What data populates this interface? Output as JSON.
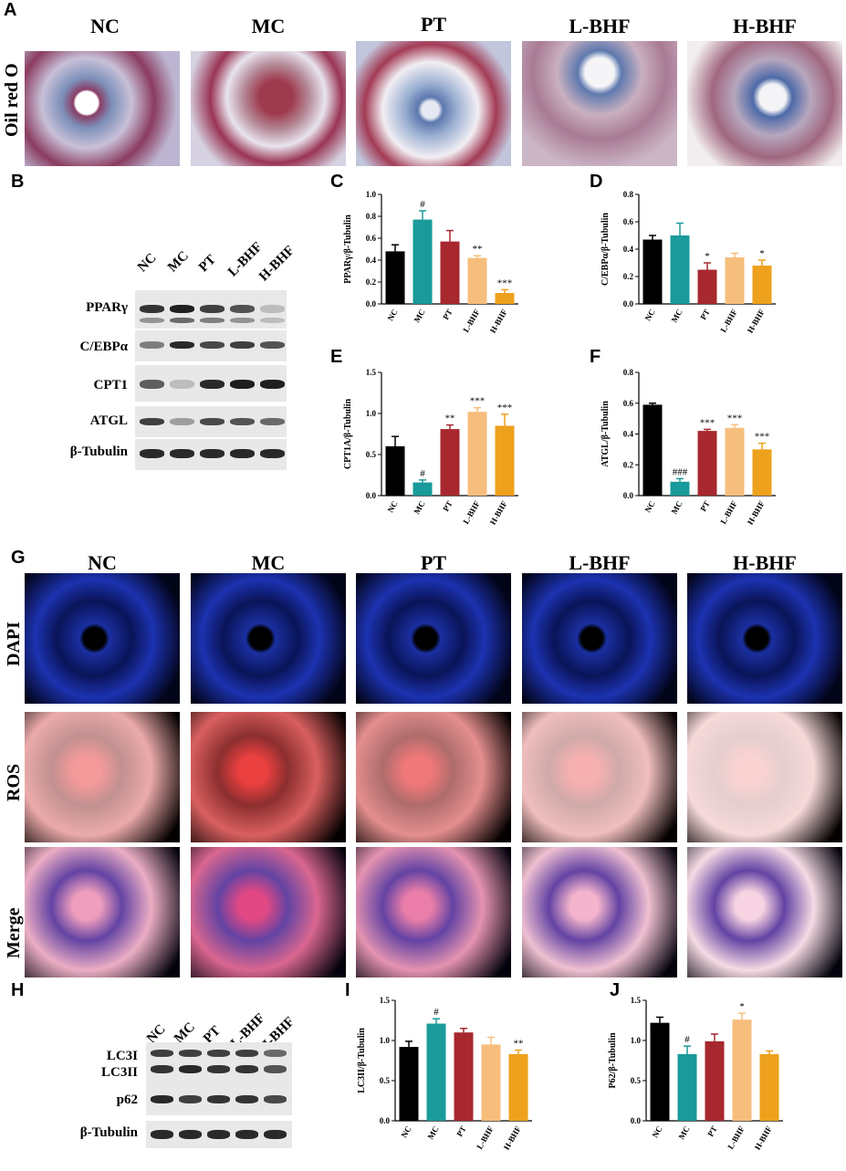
{
  "panel_letters": [
    "A",
    "B",
    "C",
    "D",
    "E",
    "F",
    "G",
    "H",
    "I",
    "J"
  ],
  "groups": [
    "NC",
    "MC",
    "PT",
    "L-BHF",
    "H-BHF"
  ],
  "panelA": {
    "row_label": "Oil red O"
  },
  "panelG": {
    "row_labels": [
      "DAPI",
      "ROS",
      "Merge"
    ]
  },
  "panelB": {
    "proteins": [
      "PPARγ",
      "C/EBPα",
      "CPT1",
      "ATGL",
      "β-Tubulin"
    ]
  },
  "panelH": {
    "proteins": [
      "LC3I",
      "LC3II",
      "p62",
      "β-Tubulin"
    ]
  },
  "colors": {
    "NC": "#000000",
    "MC": "#1a9a9a",
    "PT": "#a8282f",
    "L-BHF": "#f6be7c",
    "H-BHF": "#eea11c"
  },
  "chart_data": [
    {
      "id": "C",
      "type": "bar",
      "categories": [
        "NC",
        "MC",
        "PT",
        "L-BHF",
        "H-BHF"
      ],
      "values": [
        0.48,
        0.77,
        0.57,
        0.42,
        0.1
      ],
      "errors": [
        0.06,
        0.08,
        0.1,
        0.02,
        0.03
      ],
      "annotations": [
        "",
        "#",
        "",
        "**",
        "***"
      ],
      "ylabel": "PPARγ/β-Tubulin",
      "ylim": [
        0,
        1.0
      ],
      "yticks": [
        "0.0",
        "0.2",
        "0.4",
        "0.6",
        "0.8",
        "1.0"
      ]
    },
    {
      "id": "D",
      "type": "bar",
      "categories": [
        "NC",
        "MC",
        "PT",
        "L-BHF",
        "H-BHF"
      ],
      "values": [
        0.47,
        0.5,
        0.25,
        0.34,
        0.28
      ],
      "errors": [
        0.03,
        0.09,
        0.05,
        0.03,
        0.04
      ],
      "annotations": [
        "",
        "",
        "*",
        "",
        "*"
      ],
      "ylabel": "C/EBPα/β-Tubulin",
      "ylim": [
        0,
        0.8
      ],
      "yticks": [
        "0.0",
        "0.2",
        "0.4",
        "0.6",
        "0.8"
      ]
    },
    {
      "id": "E",
      "type": "bar",
      "categories": [
        "NC",
        "MC",
        "PT",
        "L-BHF",
        "H-BHF"
      ],
      "values": [
        0.6,
        0.16,
        0.81,
        1.02,
        0.85
      ],
      "errors": [
        0.12,
        0.03,
        0.05,
        0.05,
        0.14
      ],
      "annotations": [
        "",
        "#",
        "**",
        "***",
        "***"
      ],
      "ylabel": "CPT1A/β-Tubulin",
      "ylim": [
        0,
        1.5
      ],
      "yticks": [
        "0.0",
        "0.5",
        "1.0",
        "1.5"
      ]
    },
    {
      "id": "F",
      "type": "bar",
      "categories": [
        "NC",
        "MC",
        "PT",
        "L-BHF",
        "H-BHF"
      ],
      "values": [
        0.59,
        0.09,
        0.42,
        0.44,
        0.3
      ],
      "errors": [
        0.01,
        0.02,
        0.01,
        0.02,
        0.04
      ],
      "annotations": [
        "",
        "###",
        "***",
        "***",
        "***"
      ],
      "ylabel": "ATGL/β-Tubulin",
      "ylim": [
        0,
        0.8
      ],
      "yticks": [
        "0.0",
        "0.2",
        "0.4",
        "0.6",
        "0.8"
      ]
    },
    {
      "id": "I",
      "type": "bar",
      "categories": [
        "NC",
        "MC",
        "PT",
        "L-BHF",
        "H-BHF"
      ],
      "values": [
        0.92,
        1.21,
        1.1,
        0.95,
        0.83
      ],
      "errors": [
        0.07,
        0.06,
        0.05,
        0.09,
        0.05
      ],
      "annotations": [
        "",
        "#",
        "",
        "",
        "**"
      ],
      "ylabel": "LC3II/β-Tubulin",
      "ylim": [
        0,
        1.5
      ],
      "yticks": [
        "0.0",
        "0.5",
        "1.0",
        "1.5"
      ]
    },
    {
      "id": "J",
      "type": "bar",
      "categories": [
        "NC",
        "MC",
        "PT",
        "L-BHF",
        "H-BHF"
      ],
      "values": [
        1.22,
        0.83,
        0.99,
        1.26,
        0.83
      ],
      "errors": [
        0.07,
        0.1,
        0.09,
        0.08,
        0.04
      ],
      "annotations": [
        "",
        "#",
        "",
        "*",
        ""
      ],
      "ylabel": "P62/β-Tubulin",
      "ylim": [
        0,
        1.5
      ],
      "yticks": [
        "0.0",
        "0.5",
        "1.0",
        "1.5"
      ]
    }
  ]
}
